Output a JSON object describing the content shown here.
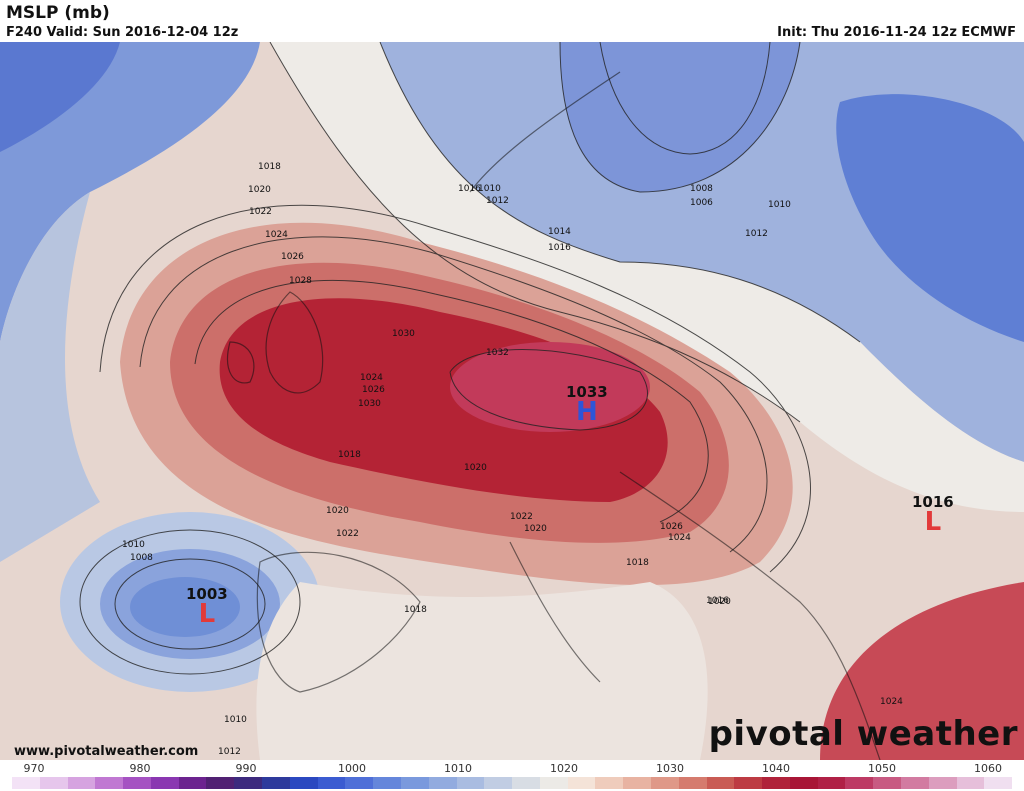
{
  "header": {
    "title": "MSLP (mb)",
    "valid": "F240 Valid: Sun 2016-12-04 12z",
    "init": "Init: Thu 2016-11-24 12z ECMWF"
  },
  "map": {
    "centers": [
      {
        "kind": "H",
        "value": "1033",
        "color": "#2f55d8"
      },
      {
        "kind": "L",
        "value": "1003",
        "color": "#e23a3a"
      },
      {
        "kind": "L",
        "value": "1016",
        "color": "#e23a3a"
      }
    ],
    "isobar_labels": [
      "1010",
      "1012",
      "1014",
      "1016",
      "1018",
      "1020",
      "1022",
      "1024",
      "1026",
      "1028",
      "1030",
      "1032",
      "1008",
      "1006",
      "1010",
      "1012",
      "1016",
      "1018",
      "1020",
      "1022",
      "1024",
      "1026",
      "1030",
      "1020",
      "1018",
      "1022",
      "1020",
      "1024",
      "1026",
      "1018",
      "1016",
      "1010",
      "1008",
      "1010",
      "1012",
      "1024",
      "1020"
    ],
    "colors": {
      "ocean_blue": "#6f8fd6",
      "deep_blue": "#4a6fd0",
      "high_red": "#b3182d",
      "core_red": "#c43252",
      "neutral": "#f0e6de"
    }
  },
  "branding": {
    "website": "www.pivotalweather.com",
    "logo": "pivotal weather"
  },
  "colorbar": {
    "ticks": [
      "970",
      "980",
      "990",
      "1000",
      "1010",
      "1020",
      "1030",
      "1040",
      "1050",
      "1060"
    ],
    "swatches": [
      "#f3e2f6",
      "#e6c6ec",
      "#d6a3e0",
      "#c078d2",
      "#a552c2",
      "#8a37b1",
      "#6c238f",
      "#512173",
      "#3d2a7e",
      "#2e3a9c",
      "#2b48c0",
      "#3b5bd1",
      "#4f6fd8",
      "#6586db",
      "#7a99dd",
      "#92abdf",
      "#a9bce1",
      "#c1cde3",
      "#d8dde4",
      "#eceae6",
      "#f4e3d8",
      "#efccbc",
      "#e8b3a2",
      "#df9888",
      "#d57b6e",
      "#c95b54",
      "#bd3b43",
      "#b0223a",
      "#a81536",
      "#b02046",
      "#bd3a64",
      "#c85a82",
      "#d27ba1",
      "#dc9dbe",
      "#e6bfda",
      "#f0dff0"
    ]
  }
}
